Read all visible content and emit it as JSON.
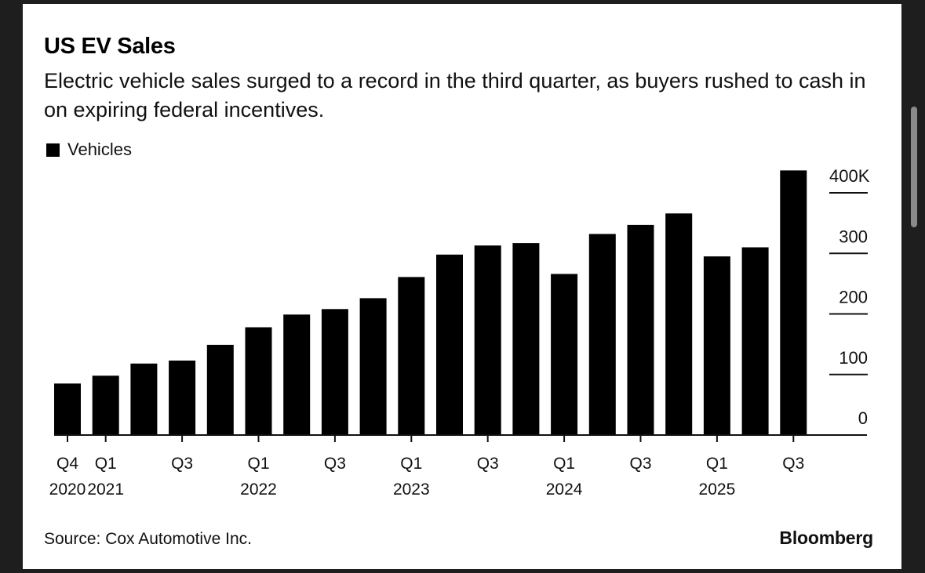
{
  "card": {
    "title": "US EV Sales",
    "subtitle": "Electric vehicle sales surged to a record in the third quarter, as buyers rushed to cash in on expiring federal incentives.",
    "legend_label": "Vehicles",
    "source": "Source: Cox Automotive Inc.",
    "brand": "Bloomberg"
  },
  "colors": {
    "bar": "#000000",
    "background": "#ffffff",
    "frame": "#1e1e1e",
    "scrollbar": "#8a8a8a"
  },
  "chart_data": {
    "type": "bar",
    "title": "US EV Sales",
    "subtitle": "Electric vehicle sales surged to a record in the third quarter, as buyers rushed to cash in on expiring federal incentives.",
    "xlabel": "",
    "ylabel": "Vehicles",
    "unit": "thousands",
    "ylim": [
      0,
      400
    ],
    "y_axis_side": "right",
    "yticks": [
      0,
      100,
      200,
      300,
      400
    ],
    "ytick_labels": [
      "0",
      "100",
      "200",
      "300",
      "400K"
    ],
    "grid": false,
    "legend": {
      "position": "top-left",
      "entries": [
        "Vehicles"
      ]
    },
    "categories": [
      "Q4 2020",
      "Q1 2021",
      "Q2 2021",
      "Q3 2021",
      "Q4 2021",
      "Q1 2022",
      "Q2 2022",
      "Q3 2022",
      "Q4 2022",
      "Q1 2023",
      "Q2 2023",
      "Q3 2023",
      "Q4 2023",
      "Q1 2024",
      "Q2 2024",
      "Q3 2024",
      "Q4 2024",
      "Q1 2025",
      "Q2 2025",
      "Q3 2025"
    ],
    "xtick_labels": [
      {
        "index": 0,
        "line1": "Q4",
        "line2": "2020"
      },
      {
        "index": 1,
        "line1": "Q1",
        "line2": "2021"
      },
      {
        "index": 3,
        "line1": "Q3",
        "line2": ""
      },
      {
        "index": 5,
        "line1": "Q1",
        "line2": "2022"
      },
      {
        "index": 7,
        "line1": "Q3",
        "line2": ""
      },
      {
        "index": 9,
        "line1": "Q1",
        "line2": "2023"
      },
      {
        "index": 11,
        "line1": "Q3",
        "line2": ""
      },
      {
        "index": 13,
        "line1": "Q1",
        "line2": "2024"
      },
      {
        "index": 15,
        "line1": "Q3",
        "line2": ""
      },
      {
        "index": 17,
        "line1": "Q1",
        "line2": "2025"
      },
      {
        "index": 19,
        "line1": "Q3",
        "line2": ""
      }
    ],
    "values": [
      85,
      98,
      118,
      123,
      149,
      178,
      199,
      208,
      226,
      261,
      298,
      313,
      317,
      266,
      332,
      347,
      366,
      295,
      310,
      437
    ]
  }
}
